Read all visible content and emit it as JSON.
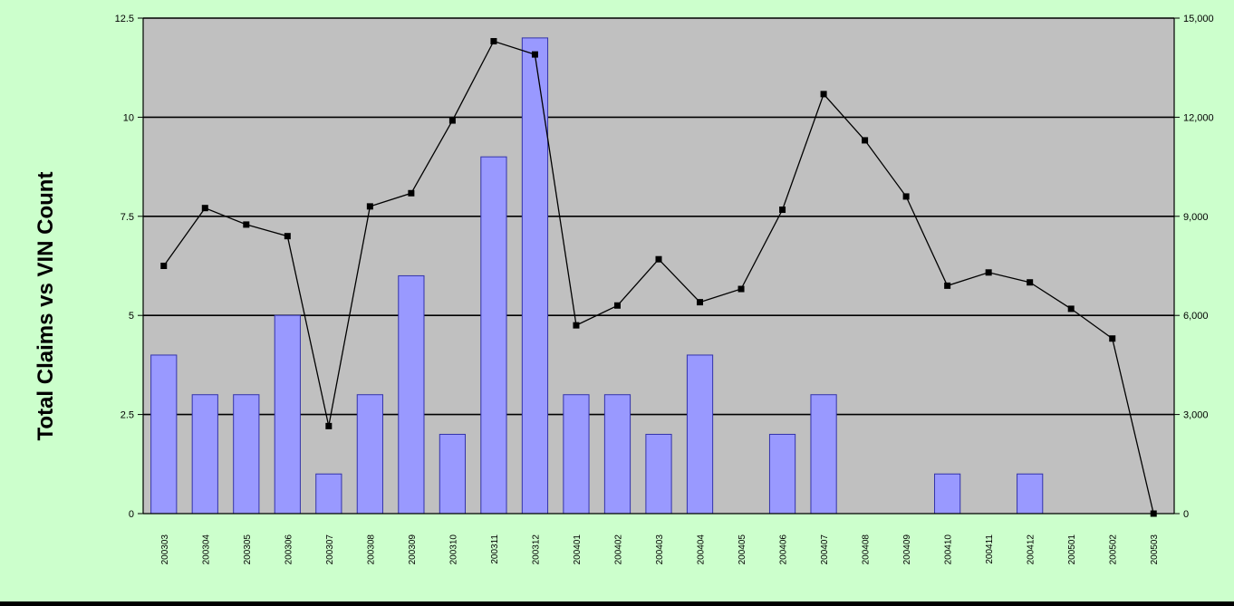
{
  "colors": {
    "panel_background": "#ccffcc",
    "plot_background": "#c0c0c0",
    "bar_fill": "#9999ff",
    "bar_stroke": "#3333aa",
    "line_color": "#000000",
    "gridline": "#000000",
    "outer_background": "#000000"
  },
  "chart_data": {
    "type": "bar",
    "title": "",
    "ylabel": "Total Claims vs VIN Count",
    "xlabel": "",
    "grid": true,
    "legend": "none",
    "categories": [
      "200303",
      "200304",
      "200305",
      "200306",
      "200307",
      "200308",
      "200309",
      "200310",
      "200311",
      "200312",
      "200401",
      "200402",
      "200403",
      "200404",
      "200405",
      "200406",
      "200407",
      "200408",
      "200409",
      "200410",
      "200411",
      "200412",
      "200501",
      "200502",
      "200503"
    ],
    "ylim": [
      0,
      12.5
    ],
    "y_ticks": [
      "0",
      "2.5",
      "5",
      "7.5",
      "10",
      "12.5"
    ],
    "y2lim": [
      0,
      15000
    ],
    "y2_ticks": [
      "0",
      "3,000",
      "6,000",
      "9,000",
      "12,000",
      "15,000"
    ],
    "series": [
      {
        "type": "bar",
        "axis": "left",
        "values": [
          4,
          3,
          3,
          5,
          1,
          3,
          6,
          2,
          9,
          12,
          3,
          3,
          2,
          4,
          0,
          2,
          3,
          0,
          0,
          1,
          0,
          1,
          0,
          0,
          0
        ]
      },
      {
        "type": "line",
        "axis": "right",
        "values": [
          7500,
          9250,
          8750,
          8400,
          2650,
          9300,
          9700,
          11900,
          14300,
          13900,
          5700,
          6300,
          7700,
          6400,
          6800,
          9200,
          12700,
          11300,
          9600,
          6900,
          7300,
          7000,
          6200,
          5300,
          0
        ]
      }
    ]
  }
}
